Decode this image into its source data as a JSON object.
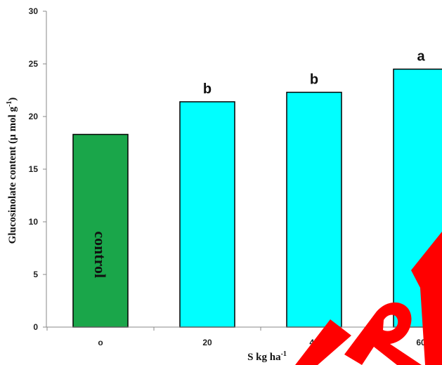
{
  "chart_data": {
    "type": "bar",
    "categories": [
      "o",
      "20",
      "40",
      "60"
    ],
    "values": [
      18.3,
      21.4,
      22.3,
      24.5
    ],
    "significance": [
      "",
      "b",
      "b",
      "a"
    ],
    "bar_colors": [
      "#1aa64a",
      "#00ffff",
      "#00ffff",
      "#00ffff"
    ],
    "bar_inside_labels": [
      "control",
      "",
      "",
      ""
    ],
    "ylim": [
      0,
      30
    ],
    "yticks": [
      0,
      5,
      10,
      15,
      20,
      25,
      30
    ],
    "ylabel": "Glucosinolate content (µ mol g",
    "ylabel_sup": "-1",
    "ylabel_end": ")",
    "xlabel": "S kg ha",
    "xlabel_sup": "-1",
    "grid": false
  },
  "overlay": {
    "color": "#ff0000"
  }
}
